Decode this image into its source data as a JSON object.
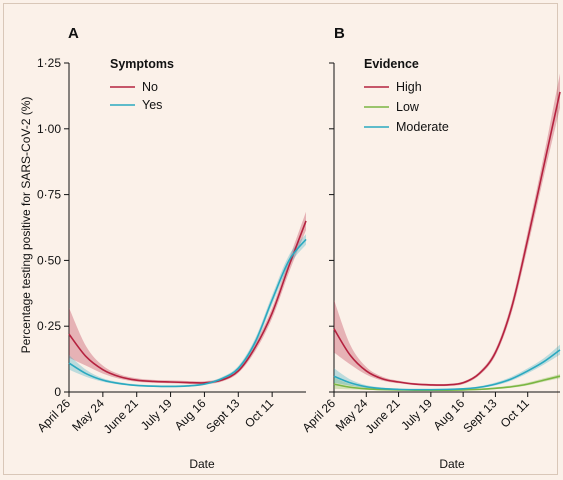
{
  "chart_data": [
    {
      "type": "line",
      "panel": "A",
      "legend_title": "Symptoms",
      "xlabel": "Date",
      "ylabel": "Percentage testing positive for SARS-CoV-2 (%)",
      "x_ticks": [
        "April 26",
        "May 24",
        "June 21",
        "July 19",
        "Aug 16",
        "Sept 13",
        "Oct 11"
      ],
      "y_ticks": [
        "0",
        "0·25",
        "0·50",
        "0·75",
        "1·00",
        "1·25"
      ],
      "ylim": [
        0,
        1.25
      ],
      "x_days": [
        0,
        14,
        28,
        42,
        56,
        70,
        84,
        98,
        112,
        126,
        140,
        154,
        168,
        182,
        196
      ],
      "series": [
        {
          "name": "No",
          "color": "#b5223f",
          "values": [
            0.22,
            0.135,
            0.085,
            0.058,
            0.045,
            0.04,
            0.038,
            0.036,
            0.035,
            0.045,
            0.08,
            0.17,
            0.3,
            0.48,
            0.65
          ],
          "lower": [
            0.13,
            0.1,
            0.07,
            0.05,
            0.039,
            0.035,
            0.033,
            0.031,
            0.03,
            0.039,
            0.072,
            0.155,
            0.28,
            0.455,
            0.615
          ],
          "upper": [
            0.32,
            0.175,
            0.1,
            0.067,
            0.052,
            0.046,
            0.044,
            0.042,
            0.041,
            0.052,
            0.089,
            0.185,
            0.32,
            0.505,
            0.685
          ]
        },
        {
          "name": "Yes",
          "color": "#2aa9c0",
          "values": [
            0.11,
            0.07,
            0.045,
            0.032,
            0.025,
            0.022,
            0.021,
            0.023,
            0.03,
            0.05,
            0.09,
            0.19,
            0.35,
            0.5,
            0.58
          ],
          "lower": [
            0.085,
            0.058,
            0.039,
            0.028,
            0.022,
            0.019,
            0.018,
            0.02,
            0.026,
            0.045,
            0.082,
            0.176,
            0.332,
            0.48,
            0.56
          ],
          "upper": [
            0.14,
            0.085,
            0.052,
            0.037,
            0.029,
            0.026,
            0.025,
            0.027,
            0.035,
            0.056,
            0.099,
            0.204,
            0.368,
            0.52,
            0.6
          ]
        }
      ]
    },
    {
      "type": "line",
      "panel": "B",
      "legend_title": "Evidence",
      "xlabel": "Date",
      "x_ticks": [
        "April 26",
        "May 24",
        "June 21",
        "July 19",
        "Aug 16",
        "Sept 13",
        "Oct 11"
      ],
      "ylim": [
        0,
        1.25
      ],
      "x_days": [
        0,
        14,
        28,
        42,
        56,
        70,
        84,
        98,
        112,
        126,
        140,
        154,
        168,
        182,
        196
      ],
      "series": [
        {
          "name": "High",
          "color": "#b5223f",
          "values": [
            0.24,
            0.14,
            0.08,
            0.05,
            0.038,
            0.03,
            0.027,
            0.027,
            0.035,
            0.07,
            0.15,
            0.32,
            0.58,
            0.86,
            1.14
          ],
          "lower": [
            0.15,
            0.105,
            0.066,
            0.043,
            0.033,
            0.026,
            0.023,
            0.023,
            0.03,
            0.063,
            0.138,
            0.3,
            0.55,
            0.82,
            1.08
          ],
          "upper": [
            0.35,
            0.18,
            0.095,
            0.058,
            0.043,
            0.034,
            0.031,
            0.031,
            0.04,
            0.077,
            0.162,
            0.34,
            0.61,
            0.9,
            1.21
          ]
        },
        {
          "name": "Low",
          "color": "#7ab642",
          "values": [
            0.03,
            0.018,
            0.012,
            0.009,
            0.008,
            0.007,
            0.007,
            0.007,
            0.008,
            0.01,
            0.014,
            0.02,
            0.03,
            0.045,
            0.06
          ],
          "lower": [
            0.012,
            0.01,
            0.008,
            0.006,
            0.005,
            0.005,
            0.005,
            0.005,
            0.006,
            0.007,
            0.011,
            0.016,
            0.025,
            0.039,
            0.052
          ],
          "upper": [
            0.055,
            0.03,
            0.018,
            0.012,
            0.011,
            0.01,
            0.01,
            0.01,
            0.011,
            0.013,
            0.018,
            0.025,
            0.036,
            0.052,
            0.068
          ]
        },
        {
          "name": "Moderate",
          "color": "#2aa9c0",
          "values": [
            0.06,
            0.035,
            0.02,
            0.013,
            0.01,
            0.009,
            0.009,
            0.01,
            0.012,
            0.018,
            0.03,
            0.05,
            0.08,
            0.115,
            0.16
          ],
          "lower": [
            0.035,
            0.024,
            0.015,
            0.01,
            0.008,
            0.007,
            0.007,
            0.008,
            0.009,
            0.014,
            0.025,
            0.043,
            0.071,
            0.104,
            0.142
          ],
          "upper": [
            0.09,
            0.048,
            0.026,
            0.017,
            0.013,
            0.011,
            0.011,
            0.012,
            0.015,
            0.022,
            0.036,
            0.058,
            0.09,
            0.128,
            0.18
          ]
        }
      ]
    }
  ]
}
